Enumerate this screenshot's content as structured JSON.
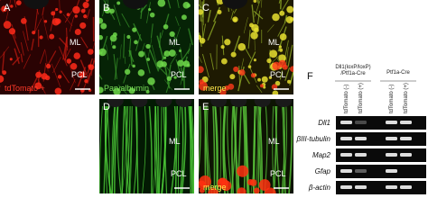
{
  "panels": [
    {
      "letter": "A",
      "caption": "tdTomato +",
      "labels": [
        "ML",
        "PCL"
      ]
    },
    {
      "letter": "B",
      "caption": "Parvalbumin",
      "labels": [
        "ML",
        "PCL"
      ]
    },
    {
      "letter": "C",
      "caption": "merge",
      "labels": [
        "ML",
        "PCL"
      ]
    },
    {
      "letter": "D",
      "labels": [
        "ML",
        "PCL"
      ]
    },
    {
      "letter": "E",
      "caption": "merge",
      "labels": [
        "ML",
        "PCL"
      ]
    }
  ],
  "gel": {
    "letter": "F",
    "groups": [
      {
        "lines": [
          "Dll1(loxP/loxP)",
          "/Ptf1a-Cre"
        ]
      },
      {
        "lines": [
          "Ptf1a-Cre"
        ]
      }
    ],
    "lanes": [
      "tdTomato (-)",
      "tdTomato (+)",
      "tdTomato (-)",
      "tdTomato (+)"
    ],
    "rows": [
      "Dll1",
      "βIII-tubulin",
      "Map2",
      "Gfap",
      "β-actin"
    ]
  }
}
